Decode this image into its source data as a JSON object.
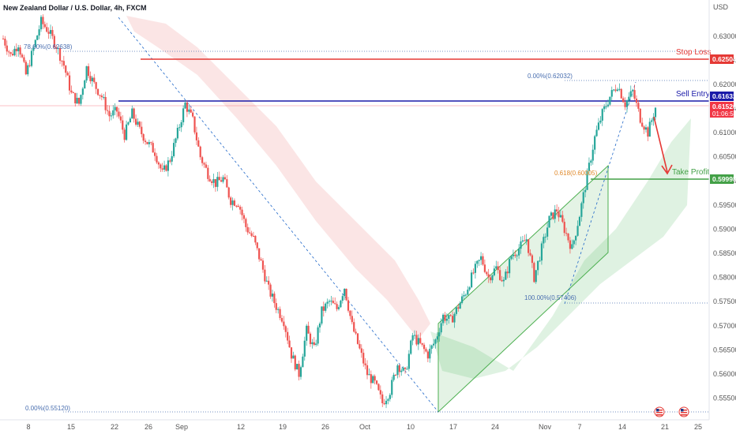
{
  "chart_data": {
    "type": "candlestick",
    "title": "New Zealand Dollar / U.S. Dollar, 4h, FXCM",
    "currency_label": "USD",
    "ylim": [
      0.5505,
      0.6375
    ],
    "y_ticks": [
      "0.55500",
      "0.56000",
      "0.56500",
      "0.57000",
      "0.57500",
      "0.58000",
      "0.58500",
      "0.59000",
      "0.59500",
      "0.60000",
      "0.60500",
      "0.61000",
      "0.61500",
      "0.62000",
      "0.62500",
      "0.63000"
    ],
    "x_ticks": [
      "8",
      "15",
      "22",
      "26",
      "Sep",
      "12",
      "19",
      "26",
      "Oct",
      "10",
      "17",
      "24",
      "Nov",
      "7",
      "14",
      "21",
      "25"
    ],
    "levels": {
      "stop_loss": {
        "label": "Stop Loss",
        "value": 0.62504,
        "tag": "0.62504",
        "color": "#e53935"
      },
      "sell_entry": {
        "label": "Sell Entry",
        "value": 0.61632,
        "tag": "0.61632",
        "color": "#1a1aa8"
      },
      "take_profit": {
        "label": "Take Profit",
        "value": 0.59998,
        "tag": "0.59998",
        "color": "#43a047"
      },
      "current_price": {
        "tag": "0.61526",
        "timer": "01:06:57",
        "color": "#f23645"
      }
    },
    "fib_labels": {
      "top_left": "78.60%(0.62638)",
      "top_right": "0.00%(0.62032)",
      "mid": "0.618(0.60005)",
      "low_mid": "100.00%(0.57406)",
      "bottom_left": "0.00%(0.55120)"
    },
    "series_path": [
      0.6295,
      0.626,
      0.6285,
      0.622,
      0.6275,
      0.633,
      0.631,
      0.628,
      0.624,
      0.618,
      0.616,
      0.6235,
      0.62,
      0.6175,
      0.6135,
      0.6145,
      0.6095,
      0.614,
      0.6105,
      0.608,
      0.606,
      0.6015,
      0.6045,
      0.61,
      0.616,
      0.6125,
      0.605,
      0.6015,
      0.5995,
      0.6005,
      0.596,
      0.5955,
      0.5905,
      0.588,
      0.583,
      0.5775,
      0.574,
      0.571,
      0.564,
      0.56,
      0.569,
      0.565,
      0.573,
      0.575,
      0.5735,
      0.578,
      0.57,
      0.565,
      0.56,
      0.558,
      0.554,
      0.5565,
      0.562,
      0.56,
      0.568,
      0.566,
      0.564,
      0.567,
      0.572,
      0.571,
      0.574,
      0.577,
      0.581,
      0.584,
      0.58,
      0.582,
      0.579,
      0.5845,
      0.586,
      0.588,
      0.58,
      0.586,
      0.592,
      0.594,
      0.59,
      0.586,
      0.593,
      0.601,
      0.609,
      0.614,
      0.6175,
      0.62,
      0.616,
      0.6185,
      0.613,
      0.61,
      0.6152
    ]
  }
}
